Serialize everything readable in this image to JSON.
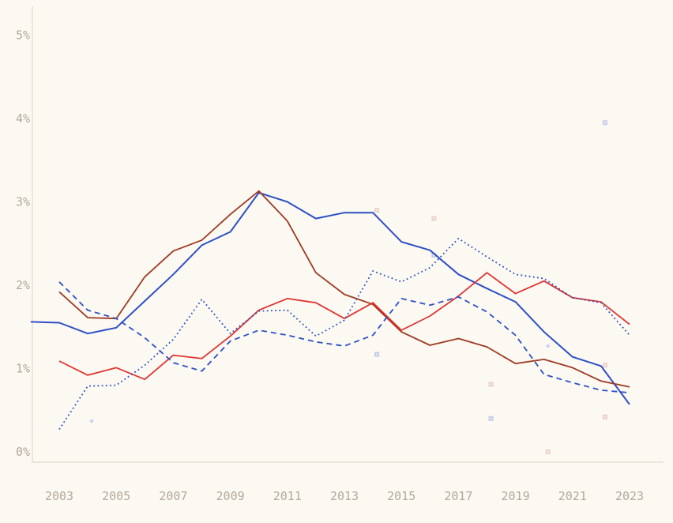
{
  "page": {
    "title": "",
    "background_color": "#fbf9f2",
    "axis_color": "#d9d4c9",
    "tick_label_color": "#b3a89d"
  },
  "chart_data": {
    "type": "line",
    "title": "",
    "xlabel": "",
    "ylabel": "",
    "grid": false,
    "legend": "none",
    "xlim": [
      2002,
      2024.5
    ],
    "ylim": [
      0,
      5.35
    ],
    "y_tick_labels": [
      "0%",
      "1%",
      "2%",
      "3%",
      "4%",
      "5%"
    ],
    "y_tick_values": [
      0,
      1,
      2,
      3,
      4,
      5
    ],
    "x_tick_labels": [
      "2003",
      "2005",
      "2007",
      "2009",
      "2011",
      "2013",
      "2015",
      "2017",
      "2019",
      "2021",
      "2023"
    ],
    "x_tick_values": [
      2003,
      2005,
      2007,
      2009,
      2011,
      2013,
      2015,
      2017,
      2019,
      2021,
      2023
    ],
    "series": [
      {
        "name": "blue-solid",
        "color": "#2e4fc4",
        "style": "solid",
        "width": 2,
        "x": [
          2002,
          2003,
          2004,
          2005,
          2006,
          2007,
          2008,
          2009,
          2010,
          2011,
          2012,
          2013,
          2014,
          2015,
          2016,
          2017,
          2018,
          2019,
          2020,
          2021,
          2022,
          2023
        ],
        "values": [
          1.56,
          1.55,
          1.42,
          1.49,
          1.81,
          2.13,
          2.48,
          2.64,
          3.11,
          3.0,
          2.8,
          2.87,
          2.87,
          2.52,
          2.42,
          2.13,
          1.96,
          1.8,
          1.44,
          1.14,
          1.03,
          0.57
        ]
      },
      {
        "name": "dark-red-solid",
        "color": "#9e3a22",
        "style": "solid",
        "width": 1.8,
        "x": [
          2003,
          2004,
          2005,
          2006,
          2007,
          2008,
          2009,
          2010,
          2011,
          2012,
          2013,
          2014,
          2015,
          2016,
          2017,
          2018,
          2019,
          2020,
          2021,
          2022,
          2023
        ],
        "values": [
          1.92,
          1.61,
          1.6,
          2.1,
          2.41,
          2.54,
          2.85,
          3.13,
          2.77,
          2.15,
          1.89,
          1.77,
          1.44,
          1.28,
          1.36,
          1.26,
          1.06,
          1.11,
          1.01,
          0.85,
          0.78
        ]
      },
      {
        "name": "red-solid",
        "color": "#e03431",
        "style": "solid",
        "width": 1.8,
        "x": [
          2003,
          2004,
          2005,
          2006,
          2007,
          2008,
          2009,
          2010,
          2011,
          2012,
          2013,
          2014,
          2015,
          2016,
          2017,
          2018,
          2019,
          2020,
          2021,
          2022,
          2023
        ],
        "values": [
          1.09,
          0.92,
          1.01,
          0.87,
          1.16,
          1.12,
          1.39,
          1.7,
          1.84,
          1.79,
          1.6,
          1.79,
          1.46,
          1.63,
          1.87,
          2.15,
          1.9,
          2.05,
          1.85,
          1.8,
          1.53
        ]
      },
      {
        "name": "blue-dashed",
        "color": "#2e4fc4",
        "style": "dashed",
        "width": 1.8,
        "x": [
          2003,
          2004,
          2005,
          2006,
          2007,
          2008,
          2009,
          2010,
          2011,
          2012,
          2013,
          2014,
          2015,
          2016,
          2017,
          2018,
          2019,
          2020,
          2021,
          2022,
          2023
        ],
        "values": [
          2.04,
          1.7,
          1.6,
          1.37,
          1.07,
          0.97,
          1.33,
          1.46,
          1.4,
          1.32,
          1.27,
          1.4,
          1.84,
          1.76,
          1.86,
          1.68,
          1.4,
          0.93,
          0.83,
          0.74,
          0.71
        ]
      },
      {
        "name": "blue-dotted",
        "color": "#2e4fc4",
        "style": "dotted",
        "width": 1.8,
        "x": [
          2003,
          2004,
          2005,
          2006,
          2007,
          2008,
          2009,
          2010,
          2011,
          2012,
          2013,
          2014,
          2015,
          2016,
          2017,
          2018,
          2019,
          2020,
          2021,
          2022,
          2023
        ],
        "values": [
          0.27,
          0.79,
          0.8,
          1.04,
          1.35,
          1.83,
          1.42,
          1.69,
          1.7,
          1.39,
          1.58,
          2.17,
          2.04,
          2.21,
          2.56,
          2.34,
          2.13,
          2.08,
          1.85,
          1.79,
          1.4
        ]
      }
    ],
    "markers": [
      {
        "year": 2004,
        "value": 0.37,
        "color": "lavender",
        "shape": "star"
      },
      {
        "year": 2014,
        "value": 2.9,
        "color": "pink",
        "shape": "square"
      },
      {
        "year": 2014,
        "value": 1.17,
        "color": "lavender",
        "shape": "square"
      },
      {
        "year": 2016,
        "value": 2.8,
        "color": "pink",
        "shape": "square"
      },
      {
        "year": 2016,
        "value": 2.36,
        "color": "lavender",
        "shape": "square"
      },
      {
        "year": 2018,
        "value": 0.81,
        "color": "pink",
        "shape": "square"
      },
      {
        "year": 2018,
        "value": 0.4,
        "color": "lavender",
        "shape": "square"
      },
      {
        "year": 2020,
        "value": 1.27,
        "color": "lavender",
        "shape": "star"
      },
      {
        "year": 2020,
        "value": 0.0,
        "color": "pink",
        "shape": "square"
      },
      {
        "year": 2022,
        "value": 3.95,
        "color": "lavender",
        "shape": "square"
      },
      {
        "year": 2022,
        "value": 1.04,
        "color": "pink",
        "shape": "square"
      },
      {
        "year": 2022,
        "value": 0.42,
        "color": "pink",
        "shape": "square"
      }
    ],
    "marker_colors": {
      "pink": "#e9cdc6",
      "lavender": "#bec6e8"
    }
  }
}
